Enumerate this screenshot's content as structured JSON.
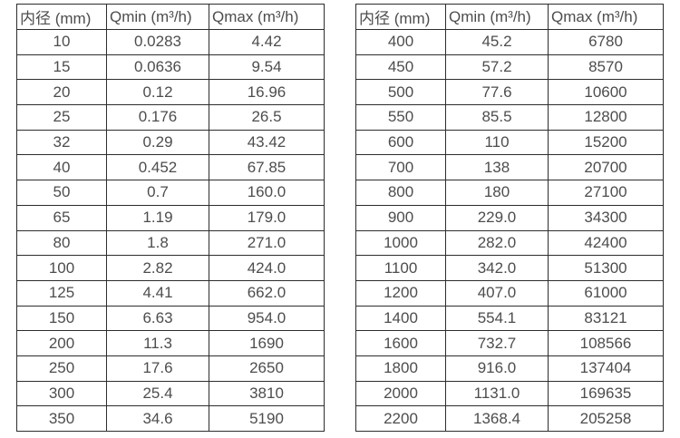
{
  "style": {
    "background": "#ffffff",
    "border_color": "#2d2d2d",
    "text_color": "#4d4d4d"
  },
  "tables": [
    {
      "name": "flow-table-small-diameters",
      "headers": [
        "内径 (mm)",
        "Qmin (m³/h)",
        "Qmax (m³/h)"
      ],
      "rows": [
        [
          "10",
          "0.0283",
          "4.42"
        ],
        [
          "15",
          "0.0636",
          "9.54"
        ],
        [
          "20",
          "0.12",
          "16.96"
        ],
        [
          "25",
          "0.176",
          "26.5"
        ],
        [
          "32",
          "0.29",
          "43.42"
        ],
        [
          "40",
          "0.452",
          "67.85"
        ],
        [
          "50",
          "0.7",
          "160.0"
        ],
        [
          "65",
          "1.19",
          "179.0"
        ],
        [
          "80",
          "1.8",
          "271.0"
        ],
        [
          "100",
          "2.82",
          "424.0"
        ],
        [
          "125",
          "4.41",
          "662.0"
        ],
        [
          "150",
          "6.63",
          "954.0"
        ],
        [
          "200",
          "11.3",
          "1690"
        ],
        [
          "250",
          "17.6",
          "2650"
        ],
        [
          "300",
          "25.4",
          "3810"
        ],
        [
          "350",
          "34.6",
          "5190"
        ]
      ]
    },
    {
      "name": "flow-table-large-diameters",
      "headers": [
        "内径 (mm)",
        "Qmin (m³/h)",
        "Qmax (m³/h)"
      ],
      "rows": [
        [
          "400",
          "45.2",
          "6780"
        ],
        [
          "450",
          "57.2",
          "8570"
        ],
        [
          "500",
          "77.6",
          "10600"
        ],
        [
          "550",
          "85.5",
          "12800"
        ],
        [
          "600",
          "110",
          "15200"
        ],
        [
          "700",
          "138",
          "20700"
        ],
        [
          "800",
          "180",
          "27100"
        ],
        [
          "900",
          "229.0",
          "34300"
        ],
        [
          "1000",
          "282.0",
          "42400"
        ],
        [
          "1100",
          "342.0",
          "51300"
        ],
        [
          "1200",
          "407.0",
          "61000"
        ],
        [
          "1400",
          "554.1",
          "83121"
        ],
        [
          "1600",
          "732.7",
          "108566"
        ],
        [
          "1800",
          "916.0",
          "137404"
        ],
        [
          "2000",
          "1131.0",
          "169635"
        ],
        [
          "2200",
          "1368.4",
          "205258"
        ]
      ]
    }
  ]
}
